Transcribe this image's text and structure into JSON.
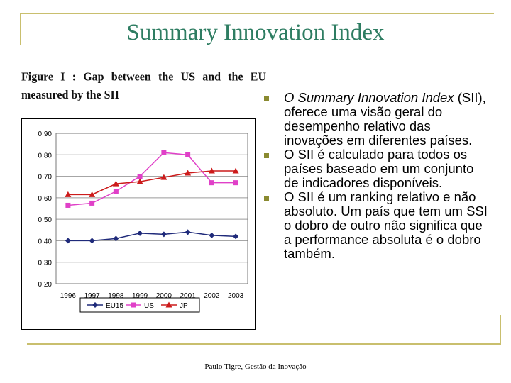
{
  "slide": {
    "title": "Summary Innovation Index",
    "footer": "Paulo Tigre, Gestão da Inovação"
  },
  "figure": {
    "caption": "Figure I : Gap between the US and the EU measured by the SII"
  },
  "bullets": [
    {
      "lead_italic": "O Summary Innovation Index",
      "rest": " (SII), oferece uma visão geral do desempenho relativo das inovações em diferentes países."
    },
    {
      "lead_italic": "",
      "rest": "O SII é calculado para todos os países baseado em um conjunto de indicadores disponíveis."
    },
    {
      "lead_italic": "",
      "rest": "O SII é um ranking relativo e não absoluto. Um país que tem um SSI o dobro de outro não significa que a performance absoluta é o dobro também."
    }
  ],
  "chart_data": {
    "type": "line",
    "x": [
      "1996",
      "1997",
      "1998",
      "1999",
      "2000",
      "2001",
      "2002",
      "2003"
    ],
    "y_ticks": [
      "0.20",
      "0.30",
      "0.40",
      "0.50",
      "0.60",
      "0.70",
      "0.80",
      "0.90"
    ],
    "ylim": [
      0.2,
      0.9
    ],
    "grid": true,
    "legend_position": "bottom",
    "series": [
      {
        "name": "EU15",
        "color": "#1f2a7a",
        "marker": "diamond",
        "values": [
          0.4,
          0.4,
          0.41,
          0.435,
          0.43,
          0.44,
          0.425,
          0.42
        ]
      },
      {
        "name": "US",
        "color": "#e040c8",
        "marker": "square",
        "values": [
          0.565,
          0.575,
          0.63,
          0.7,
          0.81,
          0.8,
          0.67,
          0.67
        ]
      },
      {
        "name": "JP",
        "color": "#cc1b1b",
        "marker": "triangle",
        "values": [
          0.615,
          0.615,
          0.665,
          0.675,
          0.695,
          0.715,
          0.725,
          0.725
        ]
      }
    ]
  }
}
